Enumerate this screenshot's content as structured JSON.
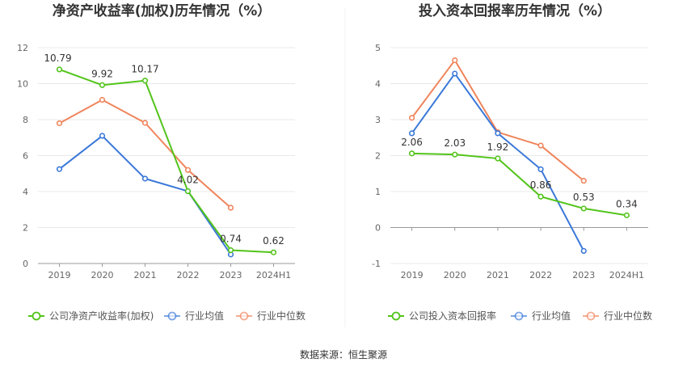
{
  "source": "数据来源：恒生聚源",
  "colors": {
    "company": "#52c41a",
    "avg": "#3a78d8",
    "median": "#f0855c",
    "grid": "#e8e8e8",
    "axis": "#999999"
  },
  "chart_data": [
    {
      "type": "line",
      "title": "净资产收益率(加权)历年情况（%）",
      "categories": [
        "2019",
        "2020",
        "2021",
        "2022",
        "2023",
        "2024H1"
      ],
      "ylim": [
        0,
        12
      ],
      "yticks": [
        "0",
        "2",
        "4",
        "6",
        "8",
        "10",
        "12"
      ],
      "grid": true,
      "legend_position": "bottom",
      "series": [
        {
          "name": "公司净资产收益率(加权)",
          "values": [
            10.79,
            9.92,
            10.17,
            4.02,
            0.74,
            0.62
          ],
          "labels": [
            "10.79",
            "9.92",
            "10.17",
            "4.02",
            "0.74",
            "0.62"
          ]
        },
        {
          "name": "行业均值",
          "values": [
            5.25,
            7.1,
            4.72,
            4.02,
            0.5,
            null
          ]
        },
        {
          "name": "行业中位数",
          "values": [
            7.8,
            9.1,
            7.82,
            5.2,
            3.1,
            null
          ]
        }
      ]
    },
    {
      "type": "line",
      "title": "投入资本回报率历年情况（%）",
      "categories": [
        "2019",
        "2020",
        "2021",
        "2022",
        "2023",
        "2024H1"
      ],
      "ylim": [
        -1,
        5
      ],
      "yticks": [
        "-1",
        "0",
        "1",
        "2",
        "3",
        "4",
        "5"
      ],
      "grid": true,
      "legend_position": "bottom",
      "series": [
        {
          "name": "公司投入资本回报率",
          "values": [
            2.06,
            2.03,
            1.92,
            0.86,
            0.53,
            0.34
          ],
          "labels": [
            "2.06",
            "2.03",
            "1.92",
            "0.86",
            "0.53",
            "0.34"
          ]
        },
        {
          "name": "行业均值",
          "values": [
            2.62,
            4.28,
            2.62,
            1.62,
            -0.65,
            null
          ]
        },
        {
          "name": "行业中位数",
          "values": [
            3.05,
            4.65,
            2.65,
            2.28,
            1.3,
            null
          ]
        }
      ]
    }
  ]
}
